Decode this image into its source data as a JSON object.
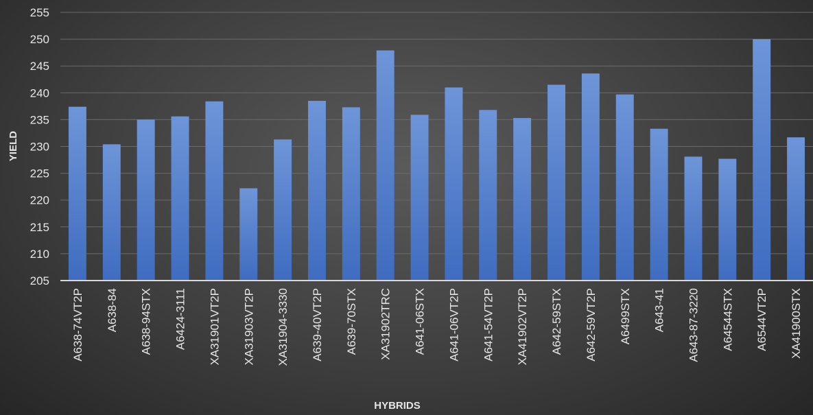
{
  "chart_data": {
    "type": "bar",
    "title": "",
    "xlabel": "HYBRIDS",
    "ylabel": "YIELD",
    "ylim": [
      205,
      255
    ],
    "yticks": [
      205,
      210,
      215,
      220,
      225,
      230,
      235,
      240,
      245,
      250,
      255
    ],
    "grid": true,
    "bar_color": "#4a78c8",
    "categories": [
      "A638-74VT2P",
      "A638-84",
      "A638-94STX",
      "A6424-3111",
      "XA31901VT2P",
      "XA31903VT2P",
      "XA31904-3330",
      "A639-40VT2P",
      "A639-70STX",
      "XA31902TRC",
      "A641-06STX",
      "A641-06VT2P",
      "A641-54VT2P",
      "XA41902VT2P",
      "A642-59STX",
      "A642-59VT2P",
      "A6499STX",
      "A643-41",
      "A643-87-3220",
      "A64544STX",
      "A6544VT2P",
      "XA41900STX"
    ],
    "values": [
      237.4,
      230.4,
      235.0,
      235.6,
      238.4,
      222.2,
      231.3,
      238.5,
      237.3,
      247.9,
      235.9,
      241.0,
      236.8,
      235.3,
      241.5,
      243.6,
      239.7,
      233.3,
      228.1,
      227.7,
      250.0,
      231.7
    ]
  }
}
